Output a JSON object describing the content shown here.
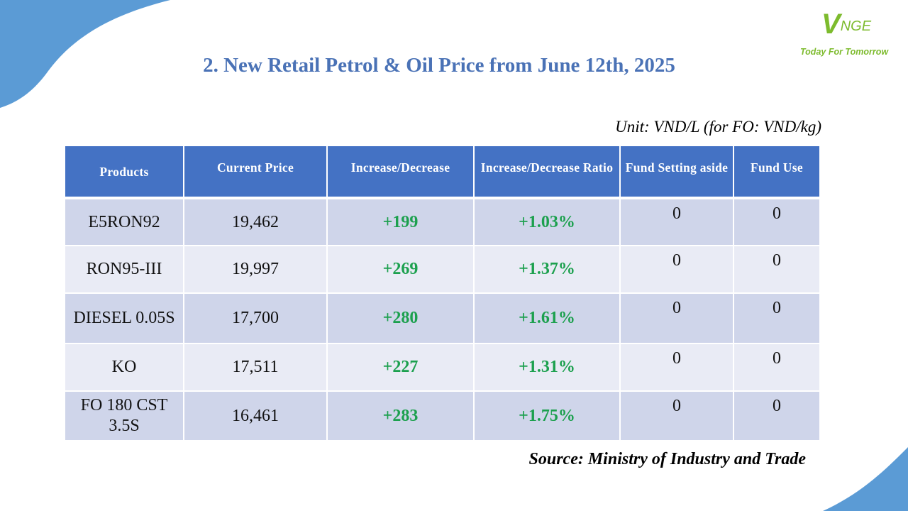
{
  "slide": {
    "title": "2. New Retail Petrol & Oil Price from June 12th, 2025",
    "unit_note": "Unit: VND/L (for FO: VND/kg)",
    "source": "Source: Ministry of Industry and Trade"
  },
  "logo": {
    "mark_v": "V",
    "mark_rest": "NGE",
    "tagline": "Today For Tomorrow"
  },
  "table": {
    "headers": [
      "Products",
      "Current Price",
      "Increase/Decrease",
      "Increase/Decrease Ratio",
      "Fund Setting aside",
      "Fund Use"
    ],
    "rows": [
      {
        "product": "E5RON92",
        "price": "19,462",
        "change": "+199",
        "ratio": "+1.03%",
        "fund_setting": "0",
        "fund_use": "0"
      },
      {
        "product": "RON95-III",
        "price": "19,997",
        "change": "+269",
        "ratio": "+1.37%",
        "fund_setting": "0",
        "fund_use": "0"
      },
      {
        "product": "DIESEL 0.05S",
        "price": "17,700",
        "change": "+280",
        "ratio": "+1.61%",
        "fund_setting": "0",
        "fund_use": "0"
      },
      {
        "product": "KO",
        "price": "17,511",
        "change": "+227",
        "ratio": "+1.31%",
        "fund_setting": "0",
        "fund_use": "0"
      },
      {
        "product": "FO 180 CST 3.5S",
        "price": "16,461",
        "change": "+283",
        "ratio": "+1.75%",
        "fund_setting": "0",
        "fund_use": "0"
      }
    ]
  },
  "colors": {
    "title": "#4a72b6",
    "header_bg": "#4472c4",
    "row_odd": "#cfd5ea",
    "row_even": "#e9ebf5",
    "increase": "#1ca04e",
    "brand_green": "#7dbb2d",
    "decor_blue": "#5b9bd5"
  }
}
